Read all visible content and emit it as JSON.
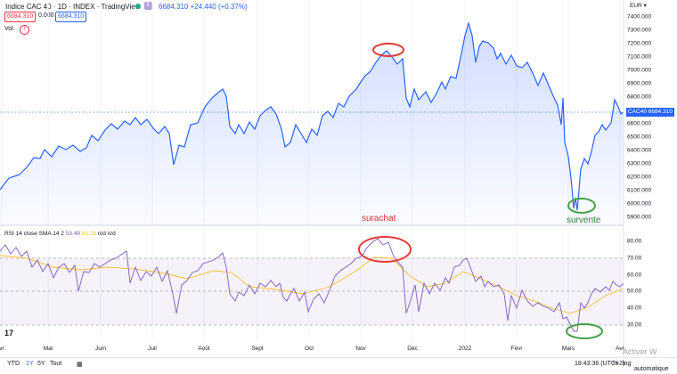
{
  "header": {
    "title": "Indice CAC 40 · 1D · INDEX · TradingView",
    "badge": "E",
    "quote": "6684.310  +24.440 (+0.37%)",
    "bid": "6684.310",
    "spread": "0.000",
    "ask": "6684.310",
    "vol_label": "Vol.",
    "vol_alert": "!"
  },
  "axis": {
    "currency": "EUR ▾",
    "price_ticks": [
      "7400.000",
      "7300.000",
      "7200.000",
      "7100.000",
      "7000.000",
      "6900.000",
      "6800.000",
      "6700.000",
      "6600.000",
      "6500.000",
      "6400.000",
      "6300.000",
      "6200.000",
      "6100.000",
      "6000.000",
      "5900.000"
    ],
    "price_values": [
      7400,
      7300,
      7200,
      7100,
      7000,
      6900,
      6800,
      6700,
      6600,
      6500,
      6400,
      6300,
      6200,
      6100,
      6000,
      5900
    ],
    "cac_tag": "CAC40  6684.310",
    "rsi_ticks": [
      "80.00",
      "70.00",
      "60.00",
      "50.00",
      "40.00",
      "30.00"
    ],
    "rsi_values": [
      80,
      70,
      60,
      50,
      40,
      30
    ],
    "months": [
      "vr",
      "Mai",
      "Juin",
      "Juil",
      "Août",
      "Sept",
      "Oct",
      "Nov",
      "Déc",
      "2022",
      "Févr",
      "Mars",
      "Avr"
    ]
  },
  "rsi": {
    "name": "RSI 14 close SMA 14 2",
    "value1": "53.49",
    "value2": "51.28",
    "na": "n/d n/d"
  },
  "annotations": {
    "overbought": "surachat",
    "oversold": "survente"
  },
  "toolbar": {
    "ranges": [
      "YTD",
      "1Y",
      "5Y",
      "Tout"
    ],
    "active_range": "1Y",
    "time": "18:43:36 (UTC+2)",
    "percent": "%",
    "log": "log",
    "auto": "automatique"
  },
  "watermark": "Activer W",
  "logo": "17",
  "colors": {
    "price_line": "#2962ff",
    "rsi_line": "#7e57c2",
    "sma_line": "#fbc02d",
    "overbought_circle": "#e53935",
    "oversold_circle": "#43a047"
  },
  "chart_data": [
    {
      "type": "area",
      "x": [
        "Mai",
        "Juin",
        "Juil",
        "Août",
        "Sept",
        "Oct",
        "Nov",
        "Déc",
        "2022",
        "Févr",
        "Mars",
        "Avr"
      ],
      "series": [
        {
          "values": [
            6280,
            6560,
            6630,
            6800,
            6700,
            6580,
            7060,
            6950,
            7150,
            7050,
            6000,
            6684
          ]
        }
      ],
      "ylim": [
        5850,
        7450
      ]
    },
    {
      "type": "line",
      "x": [
        "Mai",
        "Juin",
        "Juil",
        "Août",
        "Sept",
        "Oct",
        "Nov",
        "Déc",
        "2022",
        "Févr",
        "Mars",
        "Avr"
      ],
      "series": [
        {
          "values": [
            60,
            62,
            55,
            72,
            48,
            44,
            82,
            42,
            70,
            48,
            27,
            57
          ]
        }
      ],
      "ylim": [
        25,
        85
      ]
    }
  ]
}
